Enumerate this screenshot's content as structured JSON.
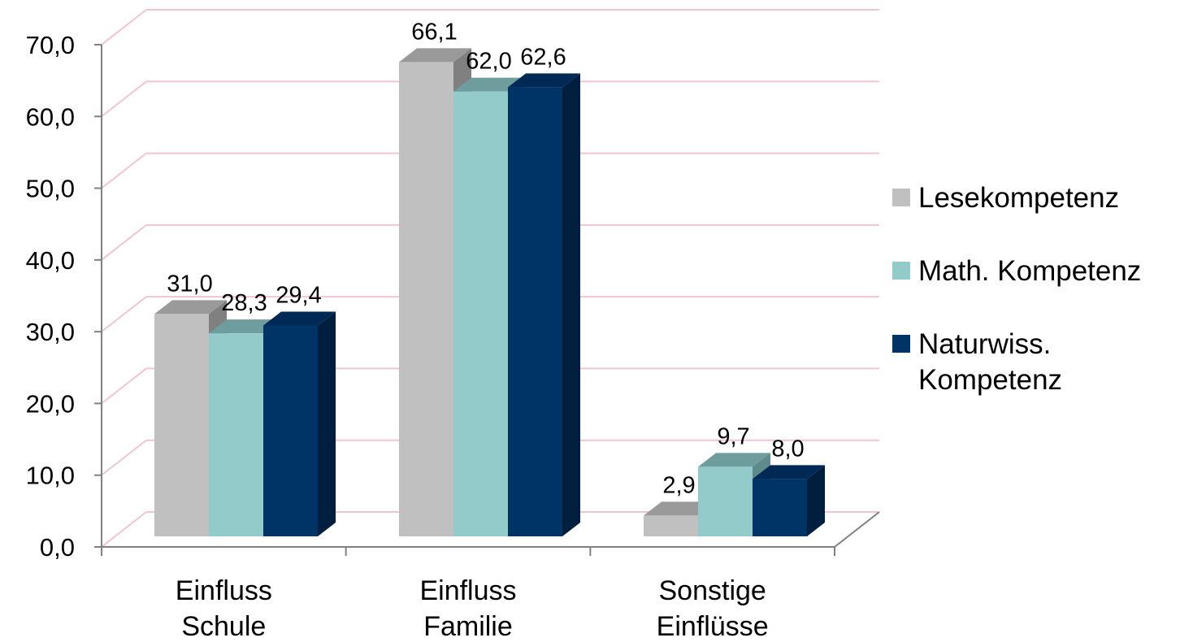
{
  "chart_data": {
    "type": "bar",
    "style": "3d-clustered-column",
    "categories": [
      "Einfluss Schule",
      "Einfluss Familie",
      "Sonstige Einflüsse"
    ],
    "category_lines": [
      [
        "Einfluss",
        "Schule"
      ],
      [
        "Einfluss",
        "Familie"
      ],
      [
        "Sonstige",
        "Einflüsse"
      ]
    ],
    "series": [
      {
        "name": "Lesekompetenz",
        "values": [
          31.0,
          66.1,
          2.9
        ],
        "labels": [
          "31,0",
          "66,1",
          "2,9"
        ],
        "color": "#c0c0c0",
        "top_color": "#9a9a9a",
        "side_color": "#808080"
      },
      {
        "name": "Math. Kompetenz",
        "values": [
          28.3,
          62.0,
          9.7
        ],
        "labels": [
          "28,3",
          "62,0",
          "9,7"
        ],
        "color": "#93cbcb",
        "top_color": "#6f9c9c",
        "side_color": "#5f8a8a"
      },
      {
        "name": "Naturwiss. Kompetenz",
        "values": [
          29.4,
          62.6,
          8.0
        ],
        "labels": [
          "29,4",
          "62,6",
          "8,0"
        ],
        "color": "#003366",
        "top_color": "#002a55",
        "side_color": "#001f3f"
      }
    ],
    "legend_lines": [
      [
        "Lesekompetenz"
      ],
      [
        "Math. Kompetenz"
      ],
      [
        "Naturwiss.",
        "Kompetenz"
      ]
    ],
    "yticks": [
      "0,0",
      "10,0",
      "20,0",
      "30,0",
      "40,0",
      "50,0",
      "60,0",
      "70,0"
    ],
    "ylim": [
      0,
      70
    ],
    "ystep": 10,
    "grid": true,
    "grid_color": "#f2c4d3",
    "legend_position": "right",
    "title": "",
    "xlabel": "",
    "ylabel": ""
  }
}
